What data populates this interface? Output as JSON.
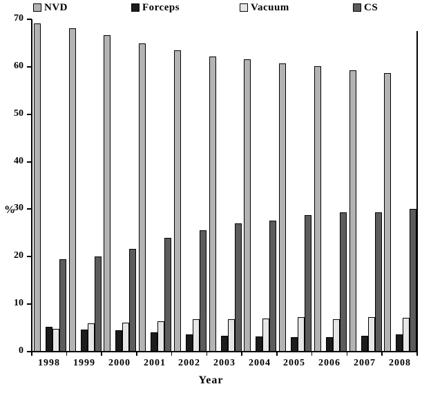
{
  "chart_data": {
    "type": "bar",
    "title": "",
    "xlabel": "Year",
    "ylabel": "%",
    "ylim": [
      0,
      70
    ],
    "yticks": [
      0,
      10,
      20,
      30,
      40,
      50,
      60,
      70
    ],
    "grid": false,
    "legend_position": "top",
    "categories": [
      "1998",
      "1999",
      "2000",
      "2001",
      "2002",
      "2003",
      "2004",
      "2005",
      "2006",
      "2007",
      "2008"
    ],
    "series": [
      {
        "name": "NVD",
        "color": "#b3b3b3",
        "values": [
          69.2,
          68.1,
          66.6,
          64.9,
          63.5,
          62.2,
          61.6,
          60.7,
          60.1,
          59.3,
          58.7
        ]
      },
      {
        "name": "Forceps",
        "color": "#1c1c1c",
        "values": [
          5.2,
          4.7,
          4.5,
          4.0,
          3.6,
          3.4,
          3.2,
          3.0,
          3.1,
          3.4,
          3.7
        ]
      },
      {
        "name": "Vacuum",
        "color": "#e6e6e6",
        "values": [
          4.8,
          5.9,
          6.1,
          6.4,
          6.8,
          6.8,
          7.0,
          7.2,
          6.8,
          7.2,
          7.1
        ]
      },
      {
        "name": "CS",
        "color": "#5c5c5c",
        "values": [
          19.5,
          20.0,
          21.7,
          24.0,
          25.5,
          27.0,
          27.6,
          28.7,
          29.4,
          29.4,
          30.0
        ]
      }
    ],
    "legend_x_positions": [
      48,
      190,
      347,
      511
    ],
    "axis_color": "#000000"
  }
}
